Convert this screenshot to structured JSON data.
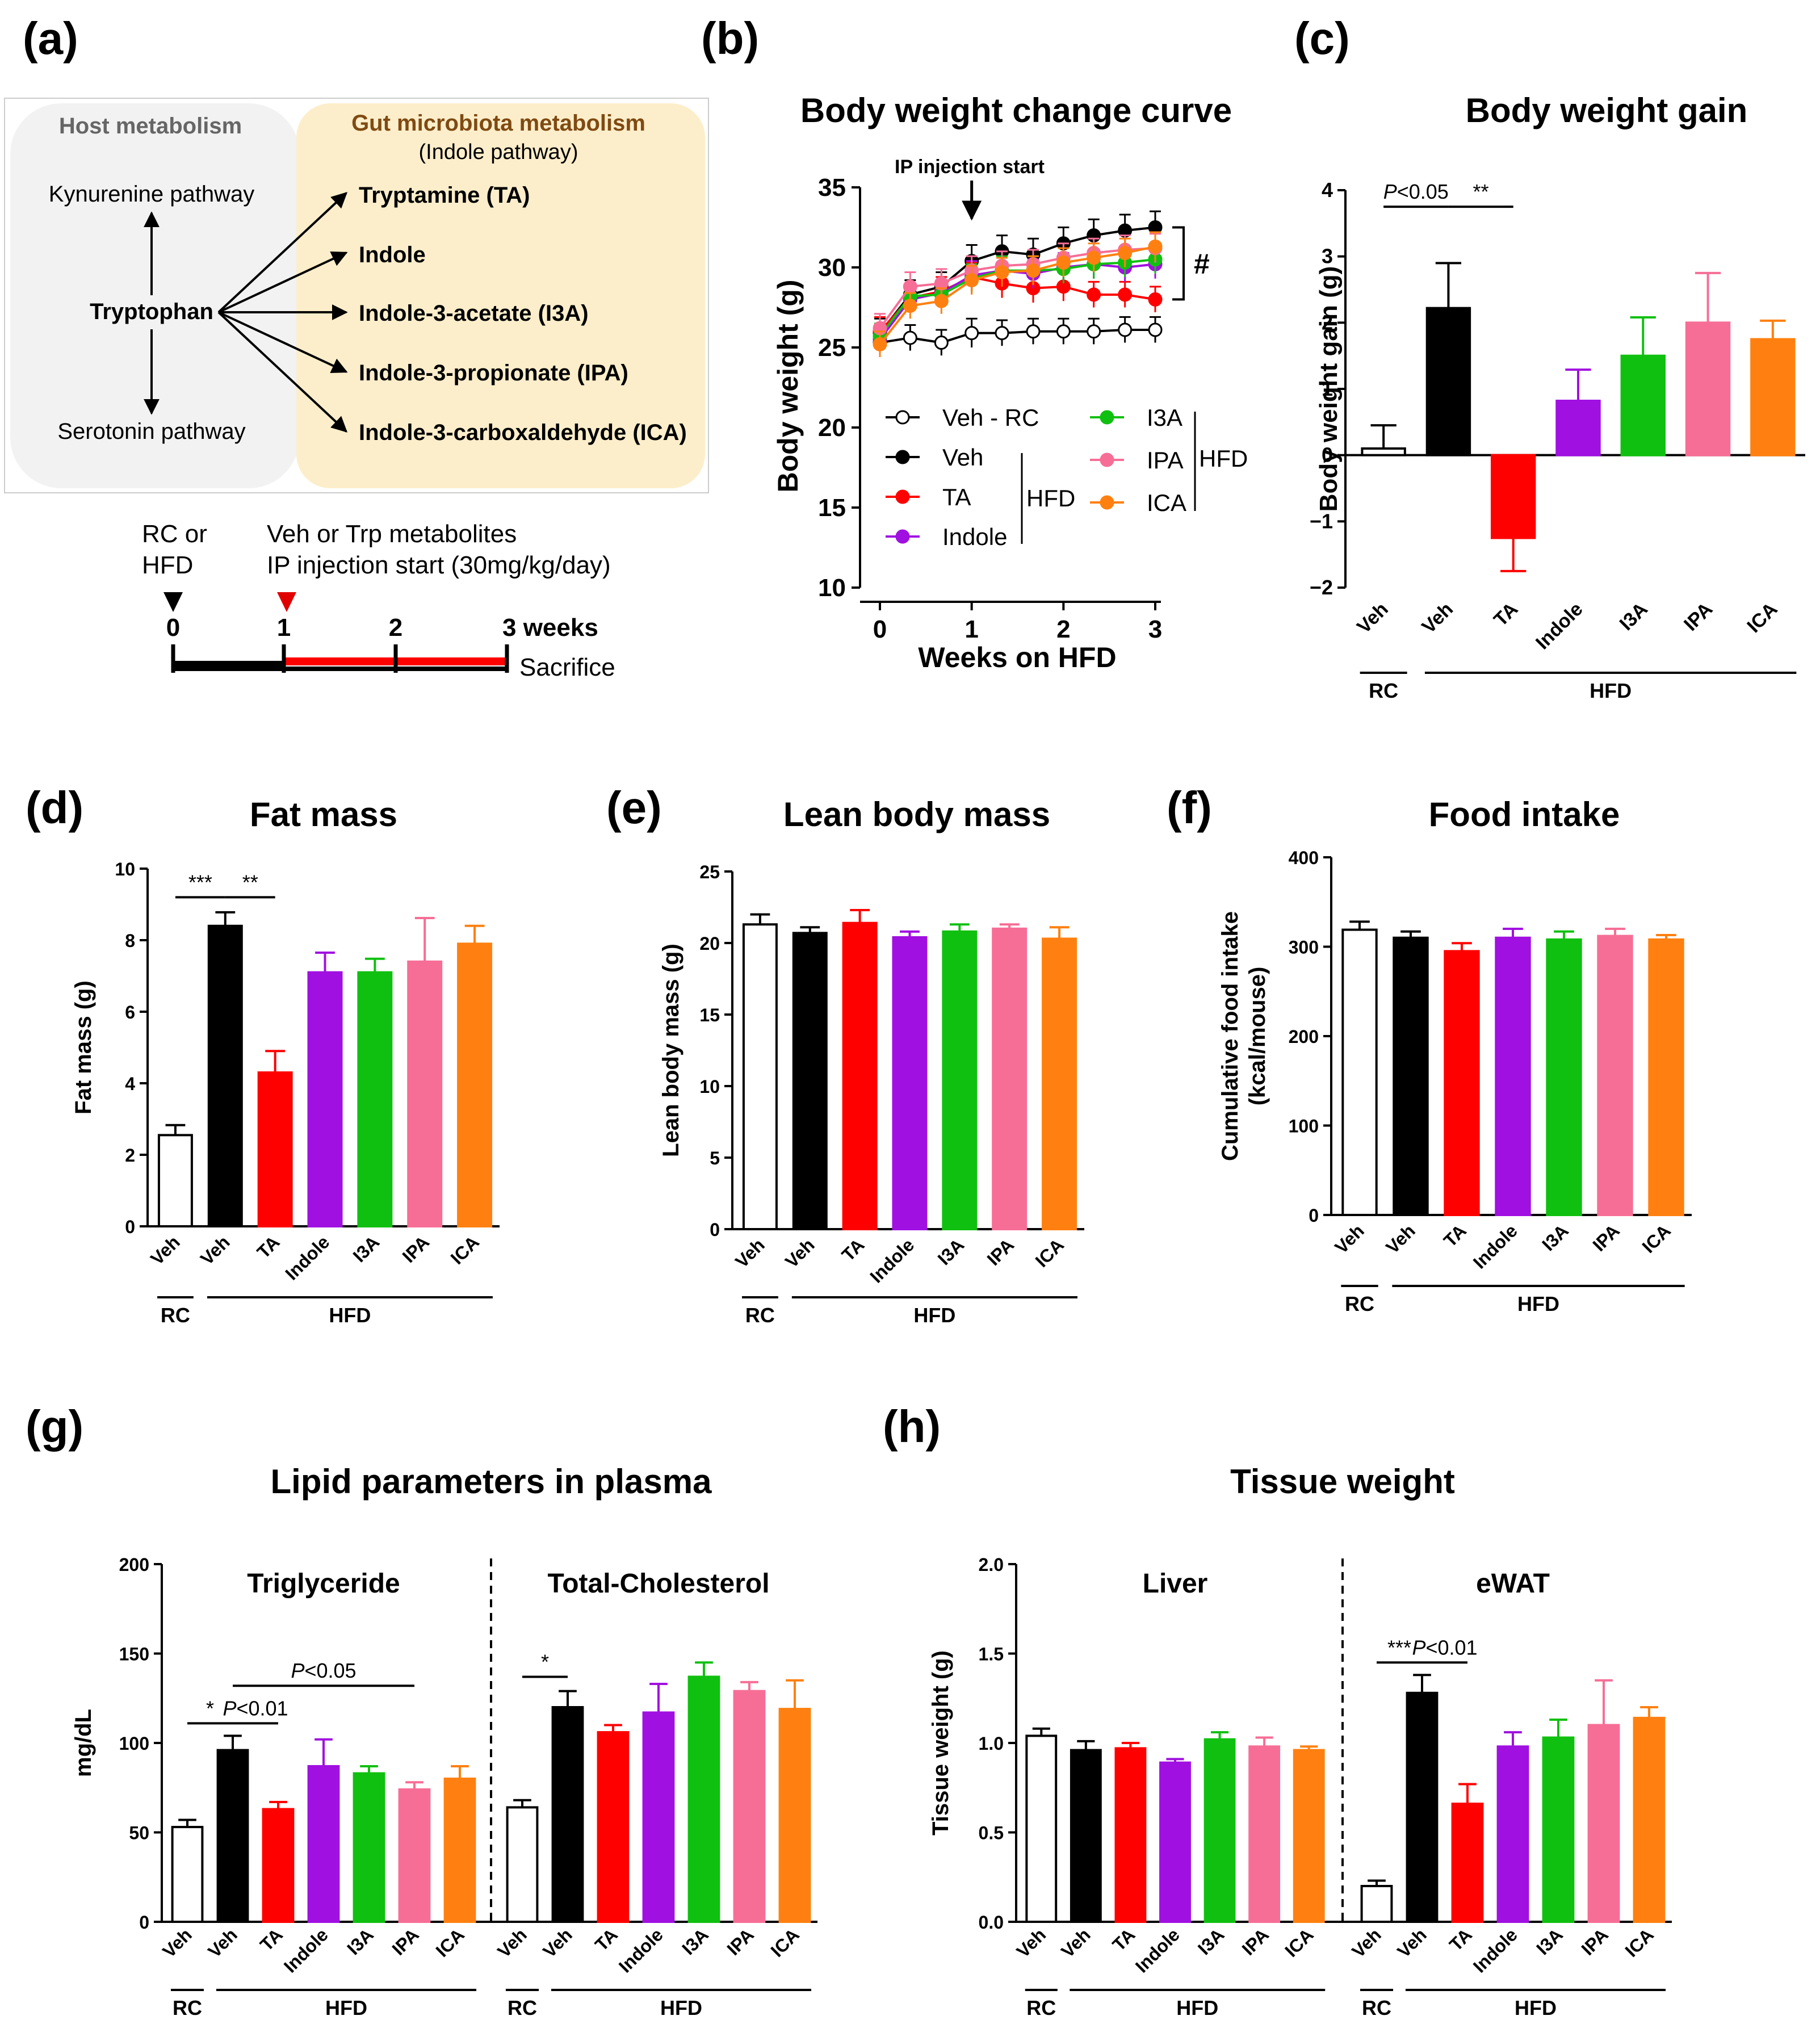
{
  "panel_labels": [
    "(a)",
    "(b)",
    "(c)",
    "(d)",
    "(e)",
    "(f)",
    "(g)",
    "(h)"
  ],
  "colors": {
    "RC": "#ffffff",
    "Veh": "#000000",
    "TA": "#ff0000",
    "Indole": "#a010e0",
    "I3A": "#10c010",
    "IPA": "#f66e96",
    "ICA": "#ff8010",
    "host_box": "#f2f2f2",
    "gut_box": "#fdeecb",
    "gut_title": "#7f4a12",
    "host_title": "#666666"
  },
  "panel_a": {
    "host_title": "Host metabolism",
    "gut_title": "Gut microbiota metabolism",
    "gut_subtitle": "(Indole pathway)",
    "kynurenine": "Kynurenine pathway",
    "tryptophan": "Tryptophan",
    "serotonin": "Serotonin pathway",
    "metabolites": [
      "Tryptamine (TA)",
      "Indole",
      "Indole-3-acetate (I3A)",
      "Indole-3-propionate (IPA)",
      "Indole-3-carboxaldehyde (ICA)"
    ],
    "timeline": {
      "rc_line1": "RC or",
      "rc_line2": "HFD",
      "veh_line1": "Veh or Trp metabolites",
      "veh_line2": "IP injection start (30mg/kg/day)",
      "ticks": [
        "0",
        "1",
        "2",
        "3 weeks"
      ],
      "sacrifice": "Sacrifice"
    }
  },
  "chart_data": [
    {
      "id": "b",
      "type": "line",
      "title": "Body weight change curve",
      "xlabel": "Weeks on HFD",
      "ylabel": "Body weight (g)",
      "xlim": [
        0,
        3
      ],
      "ylim": [
        10,
        35
      ],
      "xticks": [
        "0",
        "1",
        "2",
        "3"
      ],
      "yticks": [
        "10",
        "15",
        "20",
        "25",
        "30",
        "35"
      ],
      "annotation": "IP injection start",
      "significance": "#",
      "x": [
        0,
        0.33,
        0.67,
        1,
        1.33,
        1.67,
        2,
        2.33,
        2.67,
        3
      ],
      "series": [
        {
          "name": "Veh - RC",
          "key": "RC",
          "values": [
            25.3,
            25.6,
            25.3,
            25.9,
            25.9,
            26.0,
            26.0,
            26.0,
            26.1,
            26.1
          ],
          "err": [
            0.8,
            0.8,
            0.8,
            0.9,
            0.8,
            0.8,
            0.8,
            0.8,
            0.8,
            0.8
          ]
        },
        {
          "name": "Veh",
          "key": "Veh",
          "values": [
            25.9,
            28.3,
            28.8,
            30.4,
            31.0,
            30.8,
            31.5,
            32.0,
            32.3,
            32.5
          ],
          "err": [
            0.9,
            0.9,
            0.9,
            1.0,
            1.0,
            1.0,
            1.0,
            1.0,
            1.0,
            1.0
          ]
        },
        {
          "name": "TA",
          "key": "TA",
          "values": [
            26.0,
            28.1,
            28.5,
            29.4,
            29.0,
            28.7,
            28.8,
            28.3,
            28.3,
            28.0
          ],
          "err": [
            0.9,
            0.9,
            0.9,
            0.9,
            0.9,
            0.9,
            0.9,
            0.8,
            0.8,
            0.8
          ]
        },
        {
          "name": "Indole",
          "key": "Indole",
          "values": [
            25.5,
            28.0,
            28.4,
            29.5,
            29.8,
            29.6,
            30.0,
            30.2,
            30.0,
            30.2
          ],
          "err": [
            0.8,
            0.8,
            0.8,
            0.9,
            0.9,
            0.9,
            0.9,
            0.9,
            0.9,
            0.9
          ]
        },
        {
          "name": "I3A",
          "key": "I3A",
          "values": [
            25.7,
            28.2,
            28.3,
            29.3,
            29.8,
            29.8,
            29.9,
            30.2,
            30.3,
            30.5
          ],
          "err": [
            0.8,
            0.8,
            0.8,
            0.9,
            0.9,
            0.9,
            0.9,
            0.9,
            0.9,
            0.9
          ]
        },
        {
          "name": "IPA",
          "key": "IPA",
          "values": [
            26.2,
            28.8,
            29.0,
            29.8,
            30.1,
            30.2,
            30.6,
            30.9,
            31.1,
            31.2
          ],
          "err": [
            0.9,
            0.9,
            0.9,
            0.9,
            0.9,
            0.9,
            0.9,
            0.9,
            0.9,
            0.9
          ]
        },
        {
          "name": "ICA",
          "key": "ICA",
          "values": [
            25.2,
            27.6,
            27.9,
            29.2,
            29.7,
            29.8,
            30.3,
            30.6,
            30.9,
            31.3
          ],
          "err": [
            0.8,
            0.8,
            0.8,
            0.9,
            0.9,
            0.9,
            0.9,
            0.9,
            0.9,
            0.9
          ]
        }
      ],
      "legend_group": "HFD"
    },
    {
      "id": "c",
      "type": "bar",
      "title": "Body weight gain",
      "ylabel": "Body weight gain (g)",
      "ylim": [
        -2,
        4
      ],
      "yticks": [
        "−2",
        "−1",
        "0",
        "1",
        "2",
        "3",
        "4"
      ],
      "ytick_values": [
        -2,
        -1,
        0,
        1,
        2,
        3,
        4
      ],
      "categories": [
        "Veh",
        "Veh",
        "TA",
        "Indole",
        "I3A",
        "IPA",
        "ICA"
      ],
      "keys": [
        "RC",
        "Veh",
        "TA",
        "Indole",
        "I3A",
        "IPA",
        "ICA"
      ],
      "values": [
        0.1,
        2.22,
        -1.25,
        0.82,
        1.5,
        2.0,
        1.75
      ],
      "err": [
        0.35,
        0.68,
        0.5,
        0.47,
        0.58,
        0.75,
        0.28
      ],
      "groups": [
        "RC",
        "HFD"
      ],
      "sig": [
        {
          "from": 0,
          "to": 1,
          "label_italic": "P",
          "label_rest": "<0.05",
          "y": 3.75
        },
        {
          "from": 1,
          "to": 2,
          "label_italic": "",
          "label_rest": "**",
          "y": 3.75
        }
      ]
    },
    {
      "id": "d",
      "type": "bar",
      "title": "Fat mass",
      "ylabel": "Fat mass (g)",
      "ylim": [
        0,
        10
      ],
      "yticks": [
        "0",
        "2",
        "4",
        "6",
        "8",
        "10"
      ],
      "ytick_values": [
        0,
        2,
        4,
        6,
        8,
        10
      ],
      "categories": [
        "Veh",
        "Veh",
        "TA",
        "Indole",
        "I3A",
        "IPA",
        "ICA"
      ],
      "keys": [
        "RC",
        "Veh",
        "TA",
        "Indole",
        "I3A",
        "IPA",
        "ICA"
      ],
      "values": [
        2.55,
        8.4,
        4.3,
        7.1,
        7.1,
        7.4,
        7.9
      ],
      "err": [
        0.28,
        0.38,
        0.6,
        0.55,
        0.38,
        1.22,
        0.5
      ],
      "groups": [
        "RC",
        "HFD"
      ],
      "sig": [
        {
          "from": 0,
          "to": 1,
          "label_italic": "",
          "label_rest": "***",
          "y": 9.2
        },
        {
          "from": 1,
          "to": 2,
          "label_italic": "",
          "label_rest": "**",
          "y": 9.2
        }
      ]
    },
    {
      "id": "e",
      "type": "bar",
      "title": "Lean body mass",
      "ylabel": "Lean body mass (g)",
      "ylim": [
        0,
        25
      ],
      "yticks": [
        "0",
        "5",
        "10",
        "15",
        "20",
        "25"
      ],
      "ytick_values": [
        0,
        5,
        10,
        15,
        20,
        25
      ],
      "categories": [
        "Veh",
        "Veh",
        "TA",
        "Indole",
        "I3A",
        "IPA",
        "ICA"
      ],
      "keys": [
        "RC",
        "Veh",
        "TA",
        "Indole",
        "I3A",
        "IPA",
        "ICA"
      ],
      "values": [
        21.3,
        20.7,
        21.4,
        20.4,
        20.8,
        21.0,
        20.3
      ],
      "err": [
        0.7,
        0.4,
        0.9,
        0.4,
        0.5,
        0.3,
        0.8
      ],
      "groups": [
        "RC",
        "HFD"
      ],
      "sig": []
    },
    {
      "id": "f",
      "type": "bar",
      "title": "Food intake",
      "ylabel_line1": "Cumulative food intake",
      "ylabel_line2": "(kcal/mouse)",
      "ylim": [
        0,
        400
      ],
      "yticks": [
        "0",
        "100",
        "200",
        "300",
        "400"
      ],
      "ytick_values": [
        0,
        100,
        200,
        300,
        400
      ],
      "categories": [
        "Veh",
        "Veh",
        "TA",
        "Indole",
        "I3A",
        "IPA",
        "ICA"
      ],
      "keys": [
        "RC",
        "Veh",
        "TA",
        "Indole",
        "I3A",
        "IPA",
        "ICA"
      ],
      "values": [
        319,
        310,
        295,
        310,
        308,
        312,
        308
      ],
      "err": [
        9,
        7,
        9,
        10,
        9,
        8,
        5
      ],
      "groups": [
        "RC",
        "HFD"
      ],
      "sig": []
    },
    {
      "id": "g",
      "type": "bar",
      "title": "Lipid parameters in plasma",
      "ylabel": "mg/dL",
      "ylim": [
        0,
        200
      ],
      "yticks": [
        "0",
        "50",
        "100",
        "150",
        "200"
      ],
      "ytick_values": [
        0,
        50,
        100,
        150,
        200
      ],
      "subpanels": [
        {
          "subtitle": "Triglyceride",
          "categories": [
            "Veh",
            "Veh",
            "TA",
            "Indole",
            "I3A",
            "IPA",
            "ICA"
          ],
          "keys": [
            "RC",
            "Veh",
            "TA",
            "Indole",
            "I3A",
            "IPA",
            "ICA"
          ],
          "values": [
            53,
            96,
            63,
            87,
            83,
            74,
            80
          ],
          "err": [
            4,
            8,
            4,
            15,
            4,
            4,
            7
          ],
          "groups": [
            "RC",
            "HFD"
          ],
          "sig": [
            {
              "from": 0,
              "to": 1,
              "label_italic": "",
              "label_rest": "*",
              "y": 111
            },
            {
              "from": 1,
              "to": 2,
              "label_italic": "P",
              "label_rest": "<0.01",
              "y": 111
            },
            {
              "from": 1,
              "to": 5,
              "label_italic": "P",
              "label_rest": "<0.05",
              "y": 132
            }
          ]
        },
        {
          "subtitle": "Total-Cholesterol",
          "categories": [
            "Veh",
            "Veh",
            "TA",
            "Indole",
            "I3A",
            "IPA",
            "ICA"
          ],
          "keys": [
            "RC",
            "Veh",
            "TA",
            "Indole",
            "I3A",
            "IPA",
            "ICA"
          ],
          "values": [
            64,
            120,
            106,
            117,
            137,
            129,
            119
          ],
          "err": [
            4,
            9,
            4,
            16,
            8,
            5,
            16
          ],
          "groups": [
            "RC",
            "HFD"
          ],
          "sig": [
            {
              "from": 0,
              "to": 1,
              "label_italic": "",
              "label_rest": "*",
              "y": 137
            }
          ]
        }
      ]
    },
    {
      "id": "h",
      "type": "bar",
      "title": "Tissue weight",
      "ylabel": "Tissue weight (g)",
      "ylim": [
        0,
        2
      ],
      "yticks": [
        "0.0",
        "0.5",
        "1.0",
        "1.5",
        "2.0"
      ],
      "ytick_values": [
        0,
        0.5,
        1.0,
        1.5,
        2.0
      ],
      "subpanels": [
        {
          "subtitle": "Liver",
          "categories": [
            "Veh",
            "Veh",
            "TA",
            "Indole",
            "I3A",
            "IPA",
            "ICA"
          ],
          "keys": [
            "RC",
            "Veh",
            "TA",
            "Indole",
            "I3A",
            "IPA",
            "ICA"
          ],
          "values": [
            1.04,
            0.96,
            0.97,
            0.89,
            1.02,
            0.98,
            0.96
          ],
          "err": [
            0.04,
            0.05,
            0.03,
            0.02,
            0.04,
            0.05,
            0.02
          ],
          "groups": [
            "RC",
            "HFD"
          ],
          "sig": []
        },
        {
          "subtitle": "eWAT",
          "categories": [
            "Veh",
            "Veh",
            "TA",
            "Indole",
            "I3A",
            "IPA",
            "ICA"
          ],
          "keys": [
            "RC",
            "Veh",
            "TA",
            "Indole",
            "I3A",
            "IPA",
            "ICA"
          ],
          "values": [
            0.2,
            1.28,
            0.66,
            0.98,
            1.03,
            1.1,
            1.14
          ],
          "err": [
            0.03,
            0.1,
            0.11,
            0.08,
            0.1,
            0.25,
            0.06
          ],
          "groups": [
            "RC",
            "HFD"
          ],
          "sig": [
            {
              "from": 0,
              "to": 1,
              "label_italic": "",
              "label_rest": "***",
              "y": 1.45
            },
            {
              "from": 1,
              "to": 2,
              "label_italic": "P",
              "label_rest": "<0.01",
              "y": 1.45
            }
          ]
        }
      ]
    }
  ]
}
